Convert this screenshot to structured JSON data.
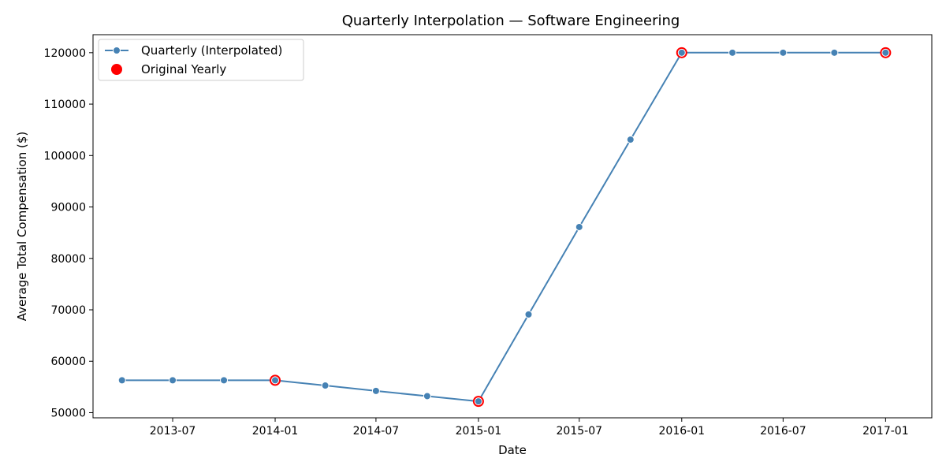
{
  "chart_data": {
    "type": "line",
    "title": "Quarterly Interpolation — Software Engineering",
    "xlabel": "Date",
    "ylabel": "Average Total Compensation ($)",
    "x_tick_labels": [
      "2013-07",
      "2014-01",
      "2014-07",
      "2015-01",
      "2015-07",
      "2016-01",
      "2016-07",
      "2017-01"
    ],
    "y_ticks": [
      50000,
      60000,
      70000,
      80000,
      90000,
      100000,
      110000,
      120000
    ],
    "ylim": [
      49000,
      123500
    ],
    "xlim": [
      "2013-02-08",
      "2017-03-25"
    ],
    "grid": false,
    "legend_position": "top-left",
    "series": [
      {
        "name": "Quarterly (Interpolated)",
        "style": "line-with-markers",
        "color": "#4682b4",
        "x": [
          "2013-04-01",
          "2013-07-01",
          "2013-10-01",
          "2014-01-01",
          "2014-04-01",
          "2014-07-01",
          "2014-10-01",
          "2015-01-01",
          "2015-04-01",
          "2015-07-01",
          "2015-10-01",
          "2016-01-01",
          "2016-04-01",
          "2016-07-01",
          "2016-10-01",
          "2017-01-01"
        ],
        "values": [
          56300,
          56300,
          56300,
          56300,
          55280,
          54230,
          53220,
          52200,
          69100,
          86100,
          103100,
          120000,
          120000,
          120000,
          120000,
          120000
        ]
      },
      {
        "name": "Original Yearly",
        "style": "markers",
        "color": "#ff0000",
        "x": [
          "2014-01-01",
          "2015-01-01",
          "2016-01-01",
          "2017-01-01"
        ],
        "values": [
          56300,
          52200,
          120000,
          120000
        ]
      }
    ]
  }
}
